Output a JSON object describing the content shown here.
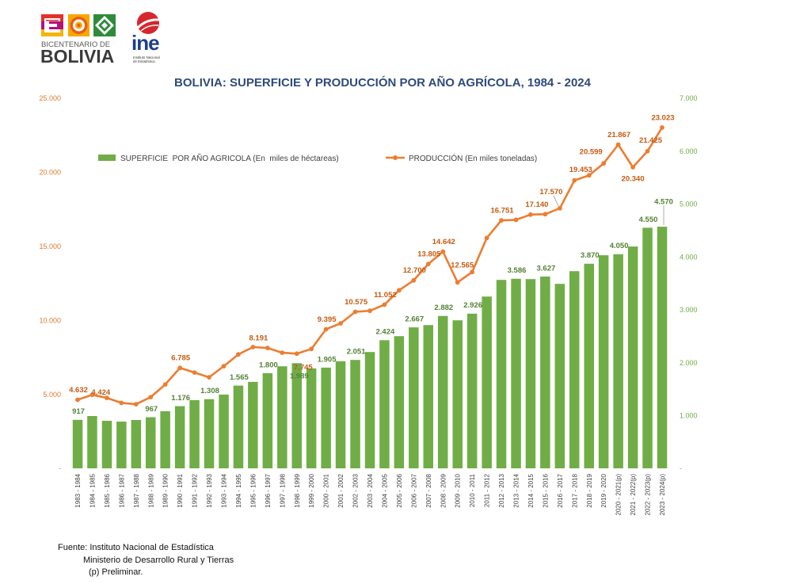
{
  "logos": {
    "bicentenario": {
      "line1": "BICENTENARIO DE",
      "line2": "BOLIVIA"
    },
    "ine": {
      "name": "ine",
      "subtitle1": "Instituto Nacional",
      "subtitle2": "de Estadística"
    }
  },
  "chart_data": {
    "type": "bar",
    "title": "BOLIVIA: SUPERFICIE Y PRODUCCIÓN POR AÑO AGRÍCOLA, 1984 - 2024",
    "title_color": "#2e4b7b",
    "legend_position": "top",
    "grid": false,
    "categories": [
      "1983 - 1984",
      "1984 - 1985",
      "1985 - 1986",
      "1986 - 1987",
      "1987 - 1988",
      "1988 - 1989",
      "1989 - 1990",
      "1990 - 1991",
      "1991 - 1992",
      "1992 - 1993",
      "1993 - 1994",
      "1994 - 1995",
      "1995 - 1996",
      "1996 - 1997",
      "1997 - 1998",
      "1998 - 1999",
      "1999 - 2000",
      "2000 - 2001",
      "2001 - 2002",
      "2002 - 2003",
      "2003 - 2004",
      "2004 - 2005",
      "2005 - 2006",
      "2006 - 2007",
      "2007 - 2008",
      "2008 - 2009",
      "2009 - 2010",
      "2010 - 2011",
      "2011 - 2012",
      "2012 - 2013",
      "2013 - 2014",
      "2014 - 2015",
      "2015 - 2016",
      "2016 - 2017",
      "2017 - 2018",
      "2018 - 2019",
      "2019 - 2020",
      "2020 - 2021(p)",
      "2021 - 2022(p)",
      "2022 - 2023(p)",
      "2023 - 2024(p)"
    ],
    "series": [
      {
        "name": "SUPERFICIE  POR AÑO AGRICOLA (En  miles de héctareas)",
        "type": "bar",
        "axis": "right",
        "color": "#70ad47",
        "label_color": "#548235",
        "values": [
          917,
          990,
          900,
          885,
          915,
          967,
          1080,
          1176,
          1290,
          1308,
          1395,
          1565,
          1635,
          1800,
          1930,
          1989,
          1890,
          1905,
          2025,
          2051,
          2200,
          2424,
          2500,
          2667,
          2710,
          2882,
          2800,
          2926,
          3250,
          3565,
          3586,
          3580,
          3627,
          3490,
          3730,
          3870,
          4030,
          4050,
          4195,
          4550,
          4570
        ],
        "labels": [
          "917",
          null,
          null,
          null,
          null,
          "967",
          null,
          "1.176",
          null,
          "1.308",
          null,
          "1.565",
          null,
          "1.800",
          null,
          "1.989",
          null,
          "1.905",
          null,
          "2.051",
          null,
          "2.424",
          null,
          "2.667",
          null,
          "2.882",
          null,
          "2.926",
          null,
          null,
          "3.586",
          null,
          "3.627",
          null,
          null,
          "3.870",
          null,
          "4.050",
          null,
          "4.550",
          "4.570"
        ]
      },
      {
        "name": "PRODUCCIÓN (En miles toneladas)",
        "type": "line",
        "axis": "left",
        "color": "#ed7d31",
        "label_color": "#c55a11",
        "values": [
          4632,
          4970,
          4760,
          4424,
          4330,
          4810,
          5670,
          6785,
          6470,
          6150,
          6900,
          7700,
          8191,
          8130,
          7810,
          7745,
          8070,
          9395,
          9790,
          10575,
          10640,
          11052,
          12030,
          12700,
          13805,
          14642,
          12565,
          13260,
          15560,
          16751,
          16790,
          17140,
          17170,
          17570,
          19453,
          19790,
          20599,
          21867,
          20340,
          21425,
          23023
        ],
        "labels": [
          "4.632",
          null,
          null,
          "4.424",
          null,
          null,
          null,
          "6.785",
          null,
          null,
          null,
          null,
          "8.191",
          null,
          null,
          "7.745",
          null,
          "9.395",
          null,
          "10.575",
          null,
          "11.052",
          null,
          "12.700",
          "13.805",
          "14.642",
          "12.565",
          null,
          null,
          "16.751",
          null,
          "17.140",
          null,
          "17.570",
          "19.453",
          null,
          "20.599",
          "21.867",
          "20.340",
          "21.425",
          "23.023"
        ]
      }
    ],
    "y_left": {
      "range": [
        0,
        25000
      ],
      "ticks": [
        0,
        5000,
        10000,
        15000,
        20000,
        25000
      ],
      "tick_labels": [
        "-",
        "5.000",
        "10.000",
        "15.000",
        "20.000",
        "25.000"
      ],
      "color": "#d97b2f"
    },
    "y_right": {
      "range": [
        0,
        7000
      ],
      "ticks": [
        0,
        1000,
        2000,
        3000,
        4000,
        5000,
        6000,
        7000
      ],
      "tick_labels": [
        "-",
        "1.000",
        "2.000",
        "3.000",
        "4.000",
        "5.000",
        "6.000",
        "7.000"
      ],
      "color": "#70ad47"
    }
  },
  "footer": {
    "source": "Fuente: Instituto Nacional de Estadística",
    "source2": "Ministerio de Desarrollo Rural y Tierras",
    "note": "(p) Preliminar."
  }
}
